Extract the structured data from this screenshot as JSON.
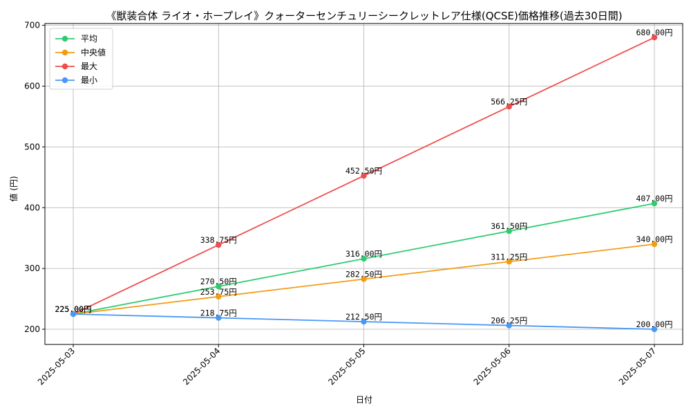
{
  "chart_data": {
    "type": "line",
    "title": "《獣装合体 ライオ・ホープレイ》クォーターセンチュリーシークレットレア仕様(QCSE)価格推移(過去30日間)",
    "xlabel": "日付",
    "ylabel": "値 (円)",
    "x": [
      "2025-05-03",
      "2025-05-04",
      "2025-05-05",
      "2025-05-06",
      "2025-05-07"
    ],
    "ylim": [
      175,
      703
    ],
    "yticks": [
      200,
      300,
      400,
      500,
      600,
      700
    ],
    "grid": true,
    "legend_position": "top-left",
    "value_suffix": "円",
    "series": [
      {
        "name": "平均",
        "color": "#2ecc71",
        "values": [
          225.0,
          270.5,
          316.0,
          361.5,
          407.0
        ]
      },
      {
        "name": "中央値",
        "color": "#f39c12",
        "values": [
          225.0,
          253.75,
          282.5,
          311.25,
          340.0
        ]
      },
      {
        "name": "最大",
        "color": "#ef4d4d",
        "values": [
          225.0,
          338.75,
          452.5,
          566.25,
          680.0
        ]
      },
      {
        "name": "最小",
        "color": "#4a98f5",
        "values": [
          225.0,
          218.75,
          212.5,
          206.25,
          200.0
        ]
      }
    ]
  }
}
